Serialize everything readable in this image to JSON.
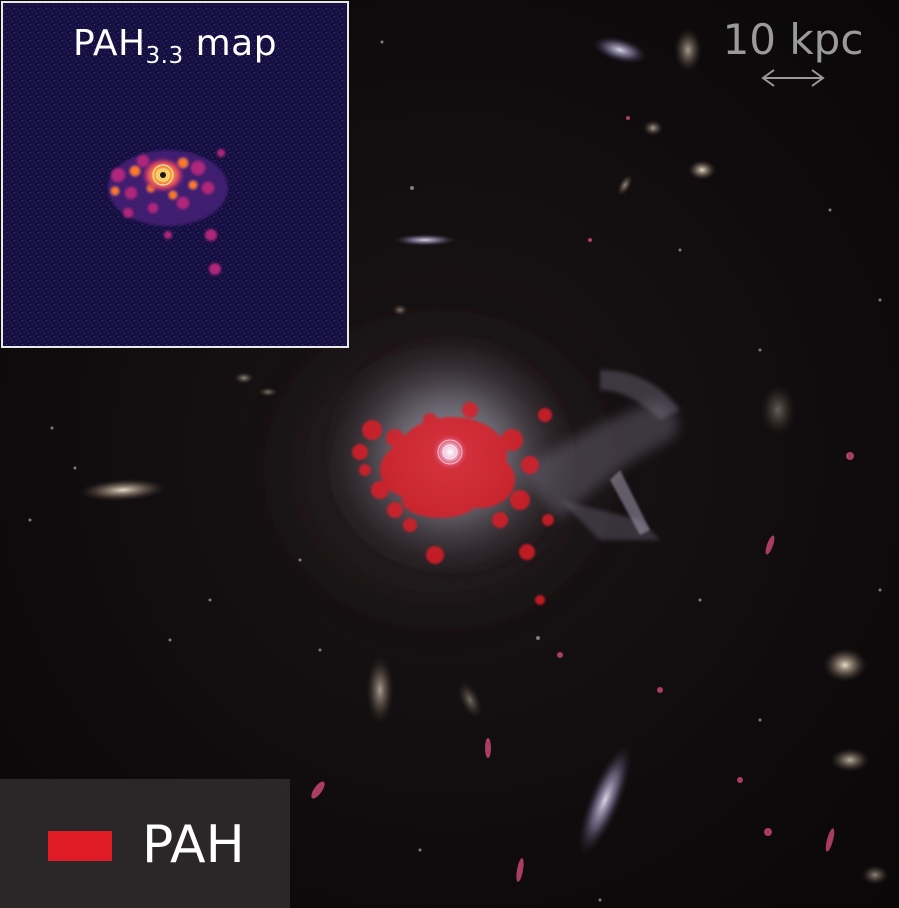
{
  "inset": {
    "title_prefix": "PAH",
    "title_subscript": "3.3",
    "title_suffix": " map"
  },
  "scale_bar": {
    "label": "10 kpc"
  },
  "legend": {
    "label": "PAH",
    "color": "#e11b26"
  }
}
